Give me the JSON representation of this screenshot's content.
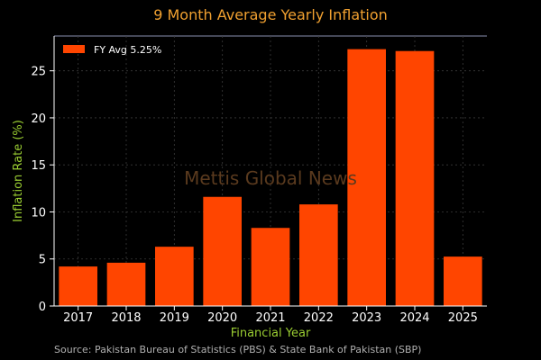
{
  "chart_data": {
    "type": "bar",
    "title": "9 Month Average Yearly Inflation",
    "xlabel": "Financial Year",
    "ylabel": "Inflation Rate (%)",
    "categories": [
      "2017",
      "2018",
      "2019",
      "2020",
      "2021",
      "2022",
      "2023",
      "2024",
      "2025"
    ],
    "values": [
      4.2,
      4.6,
      6.3,
      11.6,
      8.3,
      10.8,
      27.3,
      27.1,
      5.25
    ],
    "ylim": [
      0,
      28.7
    ],
    "yticks": [
      0,
      5,
      10,
      15,
      20,
      25
    ],
    "grid": true,
    "legend": {
      "placement": "top-left",
      "entries": [
        {
          "label": "FY Avg 5.25%",
          "color": "#ff4500"
        }
      ]
    },
    "bar_color": "#ff4500",
    "watermark": "Mettis Global News",
    "source": "Source: Pakistan Bureau of Statistics (PBS) & State Bank of Pakistan (SBP)"
  },
  "colors": {
    "background": "#000000",
    "bar": "#ff4500",
    "title": "#f0a030",
    "axis_label": "#9acd32",
    "grid": "#3a3a3a"
  }
}
